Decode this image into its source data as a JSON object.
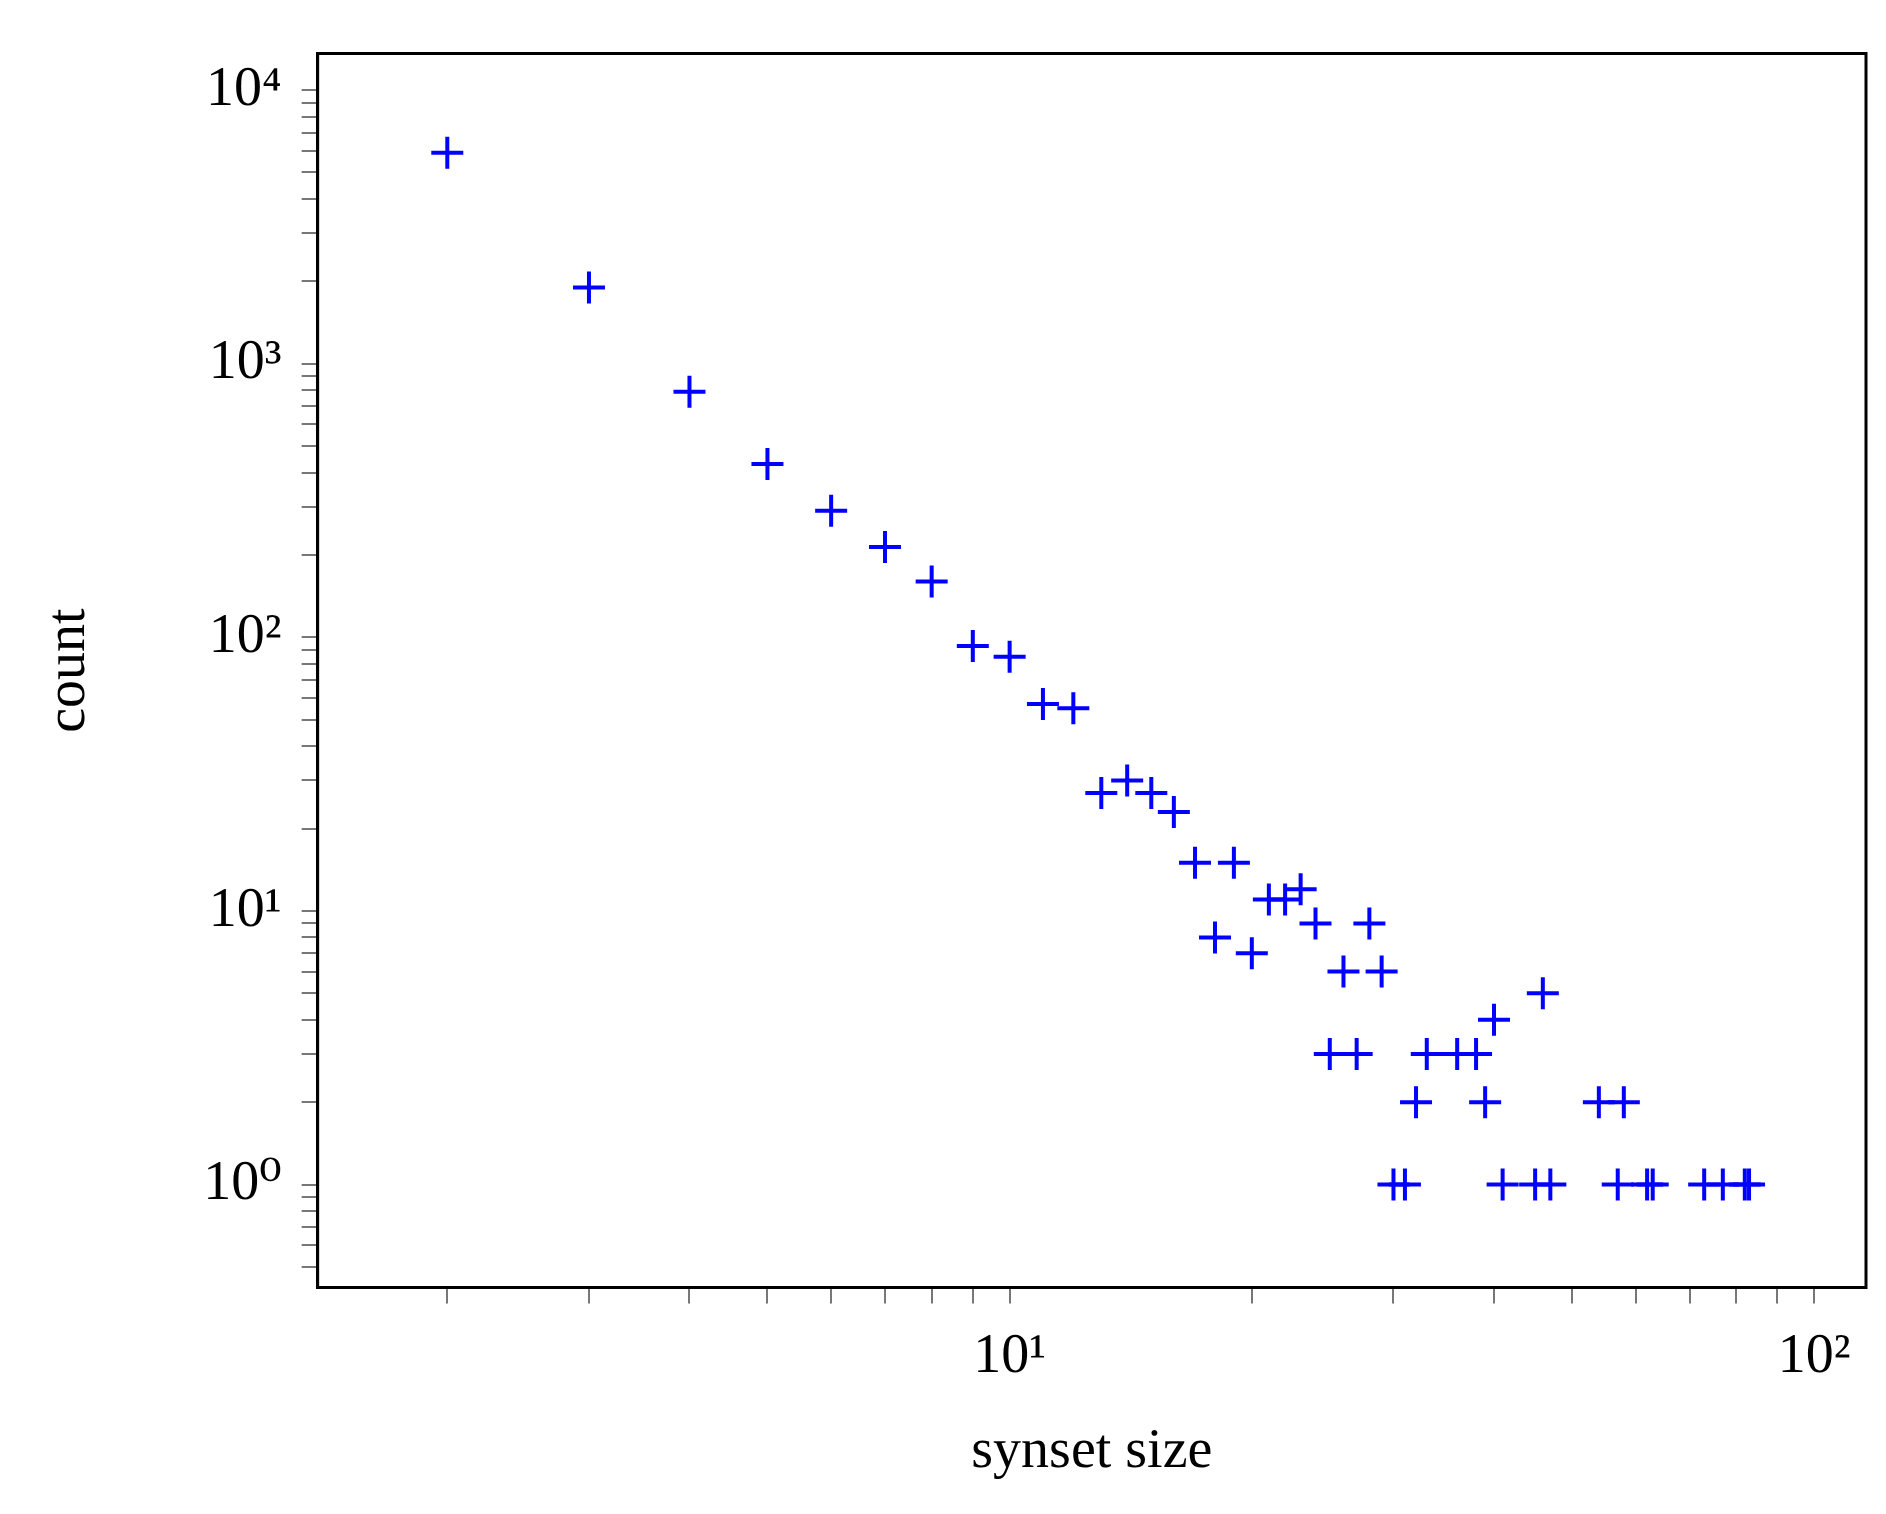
{
  "chart_data": {
    "type": "scatter",
    "xlabel": "synset size",
    "ylabel": "count",
    "log": "xy",
    "grid": false,
    "legend": false,
    "marker": "cross",
    "x": [
      2,
      3,
      4,
      5,
      6,
      7,
      8,
      9,
      10,
      11,
      12,
      13,
      14,
      15,
      16,
      17,
      18,
      19,
      20,
      21,
      22,
      23,
      24,
      25,
      26,
      27,
      28,
      29,
      30,
      31,
      32,
      33,
      36,
      38,
      39,
      40,
      41,
      45,
      46,
      47,
      54,
      57,
      58,
      62,
      63,
      73,
      77,
      82,
      83
    ],
    "series": [
      {
        "color": "#0000ff",
        "values": [
          5900,
          1900,
          790,
          430,
          290,
          214,
          160,
          93,
          85,
          57,
          55,
          27,
          30,
          27,
          23,
          15,
          8,
          15,
          7,
          11,
          11,
          12,
          9,
          3,
          6,
          3,
          9,
          6,
          1,
          1,
          2,
          3,
          3,
          3,
          2,
          4,
          1,
          1,
          5,
          1,
          2,
          1,
          2,
          1,
          1,
          1,
          1,
          1,
          1
        ]
      }
    ],
    "xlim": [
      1.38,
      116
    ],
    "ylim": [
      0.42,
      13600
    ],
    "xticks": [
      {
        "value": 2,
        "label": null
      },
      {
        "value": 3,
        "label": null
      },
      {
        "value": 4,
        "label": null
      },
      {
        "value": 5,
        "label": null
      },
      {
        "value": 6,
        "label": null
      },
      {
        "value": 7,
        "label": null
      },
      {
        "value": 8,
        "label": null
      },
      {
        "value": 9,
        "label": null
      },
      {
        "value": 10,
        "label": "10¹"
      },
      {
        "value": 20,
        "label": null
      },
      {
        "value": 30,
        "label": null
      },
      {
        "value": 40,
        "label": null
      },
      {
        "value": 50,
        "label": null
      },
      {
        "value": 60,
        "label": null
      },
      {
        "value": 70,
        "label": null
      },
      {
        "value": 80,
        "label": null
      },
      {
        "value": 90,
        "label": null
      },
      {
        "value": 100,
        "label": "10²"
      }
    ],
    "yticks": [
      {
        "value": 0.5,
        "label": null
      },
      {
        "value": 0.6,
        "label": null
      },
      {
        "value": 0.7,
        "label": null
      },
      {
        "value": 0.8,
        "label": null
      },
      {
        "value": 0.9,
        "label": null
      },
      {
        "value": 1,
        "label": "10⁰"
      },
      {
        "value": 2,
        "label": null
      },
      {
        "value": 3,
        "label": null
      },
      {
        "value": 4,
        "label": null
      },
      {
        "value": 5,
        "label": null
      },
      {
        "value": 6,
        "label": null
      },
      {
        "value": 7,
        "label": null
      },
      {
        "value": 8,
        "label": null
      },
      {
        "value": 9,
        "label": null
      },
      {
        "value": 10,
        "label": "10¹"
      },
      {
        "value": 20,
        "label": null
      },
      {
        "value": 30,
        "label": null
      },
      {
        "value": 40,
        "label": null
      },
      {
        "value": 50,
        "label": null
      },
      {
        "value": 60,
        "label": null
      },
      {
        "value": 70,
        "label": null
      },
      {
        "value": 80,
        "label": null
      },
      {
        "value": 90,
        "label": null
      },
      {
        "value": 100,
        "label": "10²"
      },
      {
        "value": 200,
        "label": null
      },
      {
        "value": 300,
        "label": null
      },
      {
        "value": 400,
        "label": null
      },
      {
        "value": 500,
        "label": null
      },
      {
        "value": 600,
        "label": null
      },
      {
        "value": 700,
        "label": null
      },
      {
        "value": 800,
        "label": null
      },
      {
        "value": 900,
        "label": null
      },
      {
        "value": 1000,
        "label": "10³"
      },
      {
        "value": 2000,
        "label": null
      },
      {
        "value": 3000,
        "label": null
      },
      {
        "value": 4000,
        "label": null
      },
      {
        "value": 5000,
        "label": null
      },
      {
        "value": 6000,
        "label": null
      },
      {
        "value": 7000,
        "label": null
      },
      {
        "value": 8000,
        "label": null
      },
      {
        "value": 9000,
        "label": null
      },
      {
        "value": 10000,
        "label": "10⁴"
      }
    ]
  }
}
